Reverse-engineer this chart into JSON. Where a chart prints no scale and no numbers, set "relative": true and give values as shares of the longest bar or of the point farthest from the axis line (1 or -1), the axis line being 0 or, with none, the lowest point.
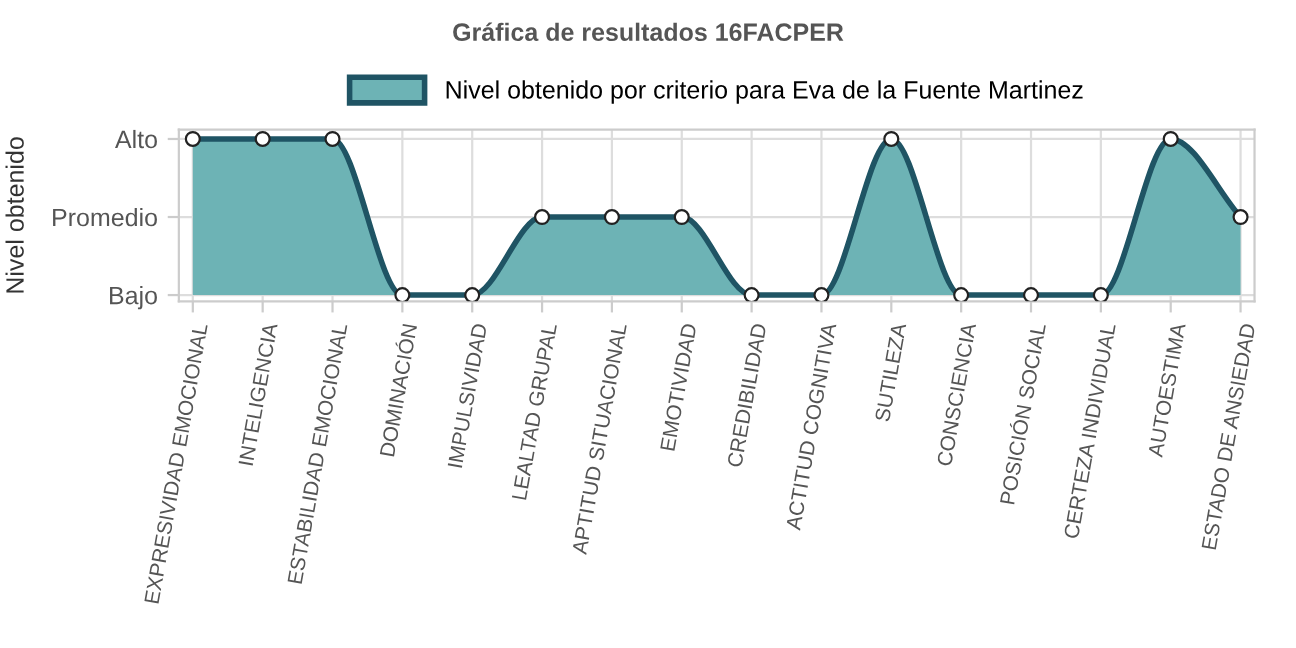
{
  "chart_data": {
    "type": "area",
    "title": "Gráfica de resultados 16FACPER",
    "ylabel": "Nivel obtenido",
    "categories": [
      "EXPRESIVIDAD EMOCIONAL",
      "INTELIGENCIA",
      "ESTABILIDAD EMOCIONAL",
      "DOMINACIÓN",
      "IMPULSIVIDAD",
      "LEALTAD GRUPAL",
      "APTITUD SITUACIONAL",
      "EMOTIVIDAD",
      "CREDIBILIDAD",
      "ACTITUD COGNITIVA",
      "SUTILEZA",
      "CONSCIENCIA",
      "POSICIÓN SOCIAL",
      "CERTEZA INDIVIDUAL",
      "AUTOESTIMA",
      "ESTADO DE ANSIEDAD"
    ],
    "series": [
      {
        "name": "Nivel obtenido por criterio para Eva de la Fuente Martinez",
        "color": "#6db3b5",
        "values": [
          1,
          1,
          1,
          0,
          0,
          0.5,
          0.5,
          0.5,
          0,
          0,
          1,
          0,
          0,
          0,
          1,
          0.5
        ]
      }
    ],
    "relative": true,
    "annotations": [
      "Alto",
      "Promedio",
      "Bajo"
    ],
    "grid": true,
    "legend": "top",
    "marker": "circle",
    "line_style": "solid"
  }
}
